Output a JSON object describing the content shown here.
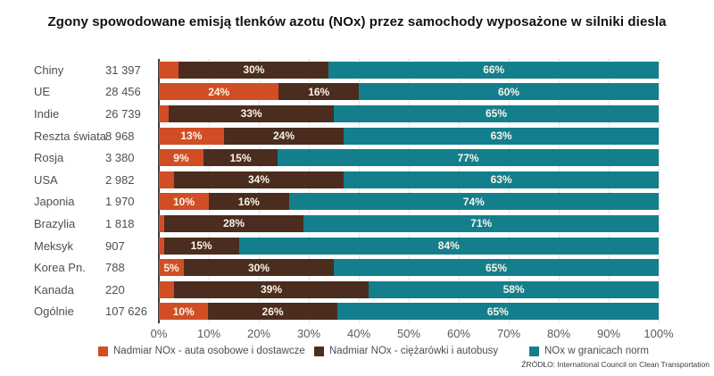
{
  "title": "Zgony spowodowane emisją tlenków azotu (NOx) przez samochody wyposażone w silniki diesla",
  "source": "ŹRÓDŁO: International Council on Clean Transportation",
  "colors": {
    "cars_orange": "#d14e24",
    "trucks_brown": "#4a2d1f",
    "within_norms_teal": "#137f8d",
    "bar_label_text": "#faf3e7",
    "axis_text": "#5a5a5a",
    "row_text": "#4f4f4f"
  },
  "chart_data": {
    "type": "bar",
    "stacked": true,
    "orientation": "horizontal",
    "grid": "vertical-dotted",
    "legend_position": "bottom",
    "xlim": [
      0,
      100
    ],
    "x_ticks": [
      "0%",
      "10%",
      "20%",
      "30%",
      "40%",
      "50%",
      "60%",
      "70%",
      "80%",
      "90%",
      "100%"
    ],
    "categories": [
      "Chiny",
      "UE",
      "Indie",
      "Reszta świata",
      "Rosja",
      "USA",
      "Japonia",
      "Brazylia",
      "Meksyk",
      "Korea Pn.",
      "Kanada",
      "Ogólnie"
    ],
    "category_values": [
      "31 397",
      "28 456",
      "26 739",
      "8 968",
      "3 380",
      "2 982",
      "1 970",
      "1 818",
      "907",
      "788",
      "220",
      "107 626"
    ],
    "series": [
      {
        "name": "Nadmiar NOx - auta osobowe i dostawcze",
        "color": "#d14e24",
        "values": [
          4,
          24,
          2,
          13,
          9,
          3,
          10,
          1,
          1,
          5,
          3,
          10
        ],
        "labels": [
          "",
          "24%",
          "",
          "13%",
          "9%",
          "",
          "10%",
          "",
          "",
          "5%",
          "",
          "10%"
        ]
      },
      {
        "name": "Nadmiar NOx - ciężarówki i autobusy",
        "color": "#4a2d1f",
        "values": [
          30,
          16,
          33,
          24,
          15,
          34,
          16,
          28,
          15,
          30,
          39,
          26
        ],
        "labels": [
          "30%",
          "16%",
          "33%",
          "24%",
          "15%",
          "34%",
          "16%",
          "28%",
          "15%",
          "30%",
          "39%",
          "26%"
        ]
      },
      {
        "name": "NOx w granicach norm",
        "color": "#137f8d",
        "values": [
          66,
          60,
          65,
          63,
          77,
          63,
          74,
          71,
          84,
          65,
          58,
          65
        ],
        "labels": [
          "66%",
          "60%",
          "65%",
          "63%",
          "77%",
          "63%",
          "74%",
          "71%",
          "84%",
          "65%",
          "58%",
          "65%"
        ]
      }
    ]
  }
}
